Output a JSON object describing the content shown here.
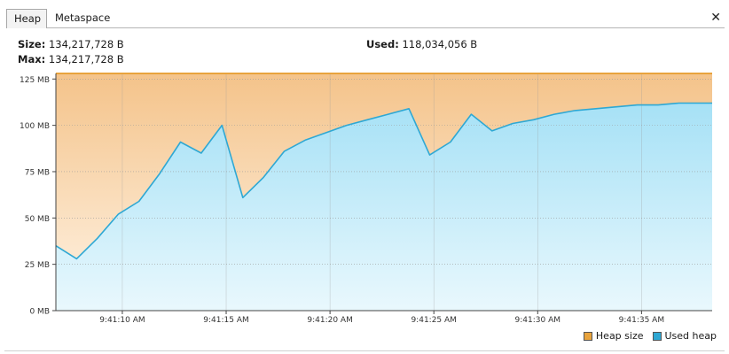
{
  "tabs": [
    {
      "label": "Heap",
      "active": true
    },
    {
      "label": "Metaspace",
      "active": false
    }
  ],
  "close_label": "✕",
  "stats": {
    "size_label": "Size:",
    "size_value": "134,217,728 B",
    "max_label": "Max:",
    "max_value": "134,217,728 B",
    "used_label": "Used:",
    "used_value": "118,034,056 B"
  },
  "legend": {
    "heap_size": {
      "label": "Heap size",
      "color": "#e8a33d"
    },
    "used_heap": {
      "label": "Used heap",
      "color": "#2ea8d4"
    }
  },
  "chart_data": {
    "type": "area",
    "ylim": [
      0,
      128
    ],
    "yticks": [
      {
        "value": 0,
        "label": "0 MB"
      },
      {
        "value": 25,
        "label": "25 MB"
      },
      {
        "value": 50,
        "label": "50 MB"
      },
      {
        "value": 75,
        "label": "75 MB"
      },
      {
        "value": 100,
        "label": "100 MB"
      },
      {
        "value": 125,
        "label": "125 MB"
      }
    ],
    "xlim": [
      "9:41:06.8",
      "9:41:38.4"
    ],
    "xticks": [
      "9:41:10 AM",
      "9:41:15 AM",
      "9:41:20 AM",
      "9:41:25 AM",
      "9:41:30 AM",
      "9:41:35 AM"
    ],
    "grid": true,
    "legend_position": "bottom-right",
    "series": [
      {
        "name": "Heap size",
        "x": [
          "9:41:06.8",
          "9:41:38.4"
        ],
        "values": [
          128,
          128
        ]
      },
      {
        "name": "Used heap",
        "x": [
          "9:41:06.8",
          "9:41:07.8",
          "9:41:08.8",
          "9:41:09.8",
          "9:41:10.8",
          "9:41:11.8",
          "9:41:12.8",
          "9:41:13.8",
          "9:41:14.8",
          "9:41:15.8",
          "9:41:16.8",
          "9:41:17.8",
          "9:41:18.8",
          "9:41:19.8",
          "9:41:20.8",
          "9:41:21.8",
          "9:41:22.8",
          "9:41:23.8",
          "9:41:24.8",
          "9:41:25.8",
          "9:41:26.8",
          "9:41:27.8",
          "9:41:28.8",
          "9:41:29.8",
          "9:41:30.8",
          "9:41:31.8",
          "9:41:32.8",
          "9:41:33.8",
          "9:41:34.8",
          "9:41:35.8",
          "9:41:36.8",
          "9:41:37.8",
          "9:41:38.4"
        ],
        "values": [
          35,
          28,
          39,
          52,
          59,
          74,
          91,
          85,
          100,
          61,
          72,
          86,
          92,
          96,
          100,
          103,
          106,
          109,
          84,
          91,
          106,
          97,
          101,
          103,
          106,
          108,
          109,
          110,
          111,
          111,
          112,
          112,
          112
        ]
      }
    ]
  }
}
